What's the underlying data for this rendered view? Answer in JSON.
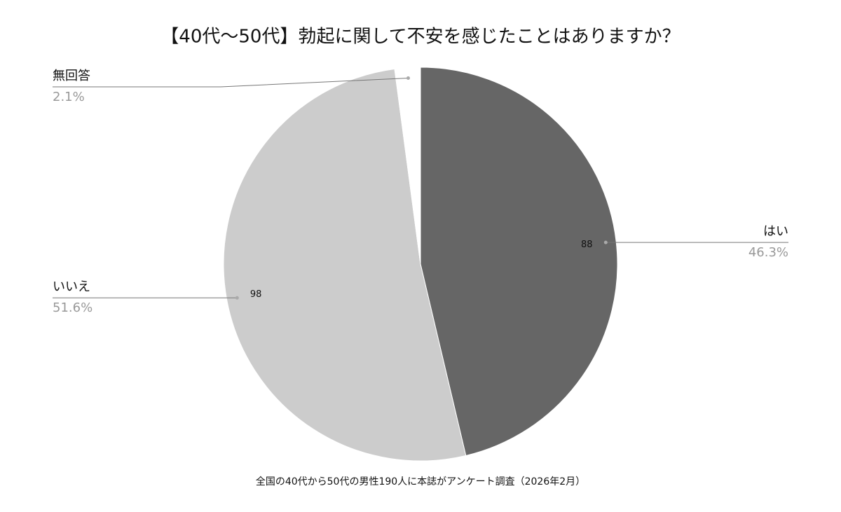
{
  "chart_data": {
    "type": "pie",
    "title": "【40代～50代】勃起に関して不安を感じたことはありますか？",
    "categories": [
      "はい",
      "いいえ",
      "無回答"
    ],
    "values": [
      46.3,
      51.6,
      2.1
    ],
    "value_labels": [
      "46.3%",
      "51.6%",
      "2.1%"
    ],
    "counts": [
      88,
      98,
      null
    ],
    "colors": [
      "#666666",
      "#cccccc",
      "#ffffff"
    ],
    "caption": "全国の40代から50代の男性190人に本誌がアンケート調査（2026年2月）"
  }
}
